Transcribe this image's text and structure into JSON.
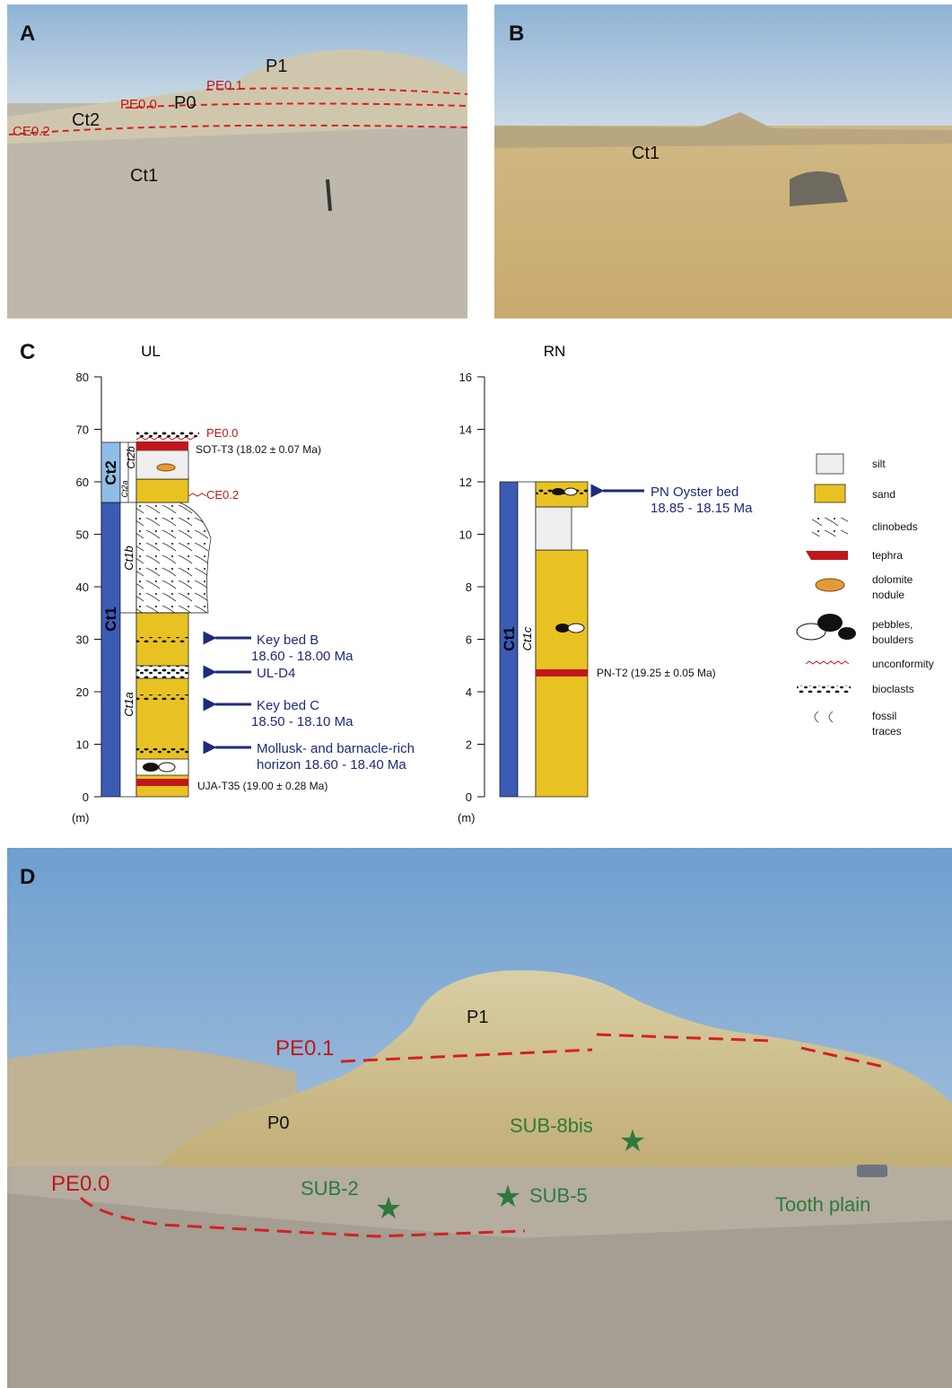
{
  "panels": {
    "A": {
      "label": "A",
      "annotations": [
        "P1",
        "PE0.1",
        "PE0.0",
        "P0",
        "Ct2",
        "CE0.2",
        "Ct1"
      ]
    },
    "B": {
      "label": "B",
      "annotations": [
        "Ct1"
      ]
    },
    "C": {
      "label": "C",
      "ul": {
        "title": "UL",
        "unit": "(m)",
        "ticks": [
          0,
          10,
          20,
          30,
          40,
          50,
          60,
          70,
          80
        ],
        "formations": [
          "Ct1",
          "Ct2"
        ],
        "subunits": [
          "Ct1a",
          "Ct1b",
          "Ct2a",
          "Ct2b"
        ],
        "notes": [
          "PE0.0",
          "SOT-T3 (18.02 ± 0.07 Ma)",
          "CE0.2",
          "UJA-T35 (19.00 ± 0.28 Ma)"
        ],
        "arrows": [
          [
            "Key bed B",
            "18.60 - 18.00 Ma"
          ],
          [
            "UL-D4"
          ],
          [
            "Key bed C",
            "18.50 - 18.10 Ma"
          ],
          [
            "Mollusk- and barnacle-rich",
            "horizon  18.60 - 18.40 Ma"
          ]
        ]
      },
      "rn": {
        "title": "RN",
        "unit": "(m)",
        "ticks": [
          0,
          2,
          4,
          6,
          8,
          10,
          12,
          14,
          16
        ],
        "formations": [
          "Ct1"
        ],
        "subunits": [
          "Ct1c"
        ],
        "notes": [
          "PN-T2 (19.25 ± 0.05 Ma)"
        ],
        "arrows": [
          [
            "PN Oyster bed",
            "18.85 - 18.15 Ma"
          ]
        ]
      },
      "legend": [
        [
          "silt"
        ],
        [
          "sand"
        ],
        [
          "clinobeds"
        ],
        [
          "tephra"
        ],
        [
          "dolomite",
          "nodule"
        ],
        [
          "pebbles,",
          "boulders"
        ],
        [
          "unconformity"
        ],
        [
          "bioclasts"
        ],
        [
          "fossil",
          "traces"
        ]
      ]
    },
    "D": {
      "label": "D",
      "annotations": [
        "P1",
        "PE0.1",
        "P0",
        "PE0.0",
        "SUB-8bis",
        "SUB-2",
        "SUB-5",
        "Tooth plain"
      ]
    }
  }
}
